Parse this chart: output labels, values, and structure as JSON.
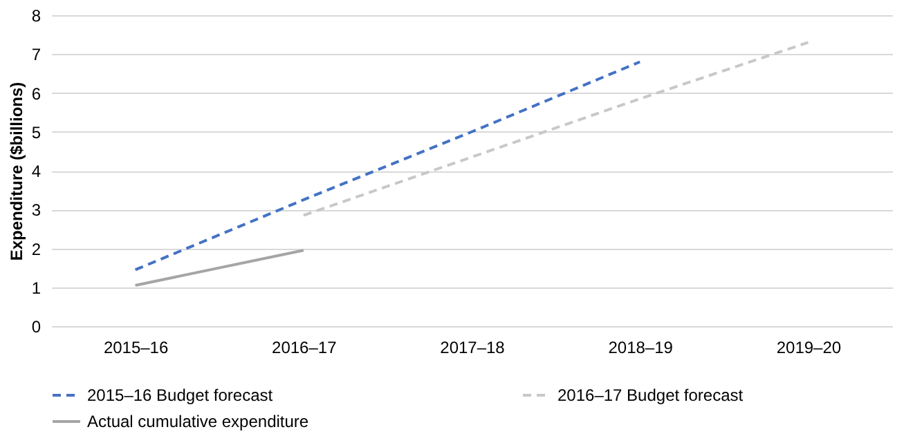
{
  "chart_data": {
    "type": "line",
    "ylabel": "Expenditure ($billions)",
    "categories": [
      "2015–16",
      "2016–17",
      "2017–18",
      "2018–19",
      "2019–20"
    ],
    "series": [
      {
        "name": "2015–16 Budget forecast",
        "color": "#4472c4",
        "line_style": "dashed",
        "values": [
          1.45,
          3.25,
          5.0,
          6.8,
          null
        ]
      },
      {
        "name": "2016–17 Budget forecast",
        "color": "#c8c8c8",
        "line_style": "dashed",
        "values": [
          null,
          2.85,
          4.35,
          5.85,
          7.3
        ]
      },
      {
        "name": "Actual cumulative expenditure",
        "color": "#a5a5a5",
        "line_style": "solid",
        "values": [
          1.05,
          1.95,
          null,
          null,
          null
        ]
      }
    ],
    "ylim": [
      0,
      8
    ],
    "yticks": [
      0,
      1,
      2,
      3,
      4,
      5,
      6,
      7,
      8
    ],
    "grid": "y",
    "legend": "bottom",
    "marker": "none"
  }
}
